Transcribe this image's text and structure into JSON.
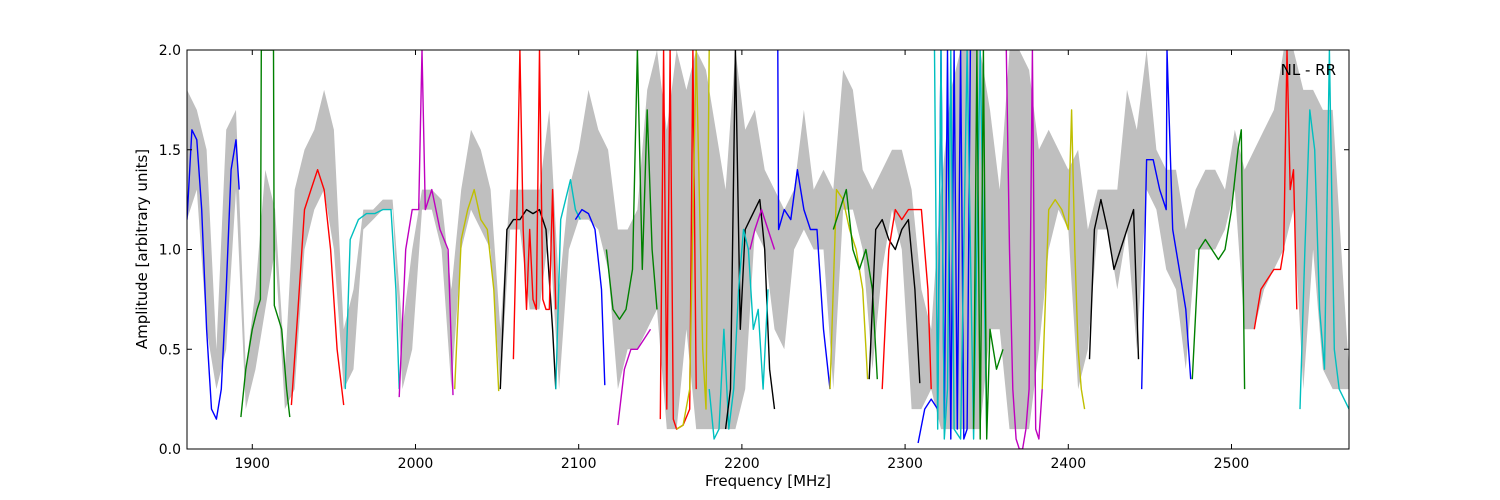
{
  "chart_data": {
    "type": "line",
    "title": "",
    "xlabel": "Frequency [MHz]",
    "ylabel": "Amplitude [arbitrary units]",
    "annotation": "NL - RR",
    "xlim": [
      1860,
      2572
    ],
    "ylim": [
      0.0,
      2.0
    ],
    "grid": false,
    "xticks": [
      {
        "value": 1900,
        "label": "1900"
      },
      {
        "value": 2000,
        "label": "2000"
      },
      {
        "value": 2100,
        "label": "2100"
      },
      {
        "value": 2200,
        "label": "2200"
      },
      {
        "value": 2300,
        "label": "2300"
      },
      {
        "value": 2400,
        "label": "2400"
      },
      {
        "value": 2500,
        "label": "2500"
      }
    ],
    "yticks": [
      {
        "value": 0.0,
        "label": "0.0"
      },
      {
        "value": 0.5,
        "label": "0.5"
      },
      {
        "value": 1.0,
        "label": "1.0"
      },
      {
        "value": 1.5,
        "label": "1.5"
      },
      {
        "value": 2.0,
        "label": "2.0"
      }
    ],
    "envelope": {
      "color": "#bfbfbf",
      "x": [
        1860,
        1866,
        1872,
        1878,
        1884,
        1890,
        1896,
        1902,
        1908,
        1914,
        1920,
        1926,
        1932,
        1938,
        1944,
        1950,
        1956,
        1962,
        1968,
        1974,
        1980,
        1986,
        1992,
        1998,
        2004,
        2010,
        2016,
        2022,
        2028,
        2034,
        2040,
        2046,
        2052,
        2058,
        2064,
        2070,
        2076,
        2082,
        2088,
        2094,
        2100,
        2106,
        2112,
        2118,
        2124,
        2130,
        2136,
        2142,
        2148,
        2154,
        2160,
        2166,
        2172,
        2178,
        2184,
        2190,
        2196,
        2202,
        2208,
        2214,
        2220,
        2226,
        2232,
        2238,
        2244,
        2250,
        2256,
        2262,
        2268,
        2274,
        2280,
        2286,
        2292,
        2298,
        2304,
        2310,
        2316,
        2322,
        2328,
        2334,
        2340,
        2346,
        2352,
        2358,
        2364,
        2370,
        2376,
        2382,
        2388,
        2394,
        2400,
        2406,
        2412,
        2418,
        2424,
        2430,
        2436,
        2442,
        2448,
        2454,
        2460,
        2466,
        2472,
        2478,
        2484,
        2490,
        2496,
        2502,
        2508,
        2514,
        2520,
        2526,
        2532,
        2538,
        2544,
        2550,
        2556,
        2562,
        2568,
        2572
      ],
      "lo": [
        1.15,
        1.3,
        0.6,
        0.3,
        0.5,
        1.3,
        0.2,
        0.4,
        0.7,
        1.0,
        0.2,
        0.3,
        1.0,
        1.2,
        1.3,
        1.0,
        0.3,
        0.4,
        1.1,
        1.15,
        1.2,
        1.2,
        0.3,
        0.5,
        1.2,
        1.2,
        1.0,
        0.3,
        1.0,
        1.2,
        1.1,
        1.0,
        0.3,
        1.1,
        1.1,
        0.7,
        0.7,
        1.1,
        0.3,
        1.0,
        1.15,
        1.15,
        1.1,
        0.9,
        0.3,
        0.5,
        0.5,
        0.6,
        0.7,
        0.1,
        0.1,
        0.6,
        0.1,
        0.1,
        0.1,
        0.1,
        0.1,
        0.3,
        1.1,
        1.0,
        0.6,
        0.5,
        1.0,
        1.1,
        1.0,
        1.0,
        0.3,
        1.2,
        1.2,
        1.0,
        0.4,
        0.9,
        1.2,
        1.0,
        0.2,
        0.2,
        0.3,
        0.1,
        0.1,
        0.1,
        0.1,
        0.1,
        0.6,
        0.6,
        0.1,
        0.1,
        0.1,
        0.5,
        1.0,
        1.2,
        1.1,
        0.3,
        0.5,
        1.1,
        1.1,
        0.8,
        1.1,
        0.5,
        1.3,
        1.2,
        0.9,
        0.8,
        0.4,
        1.0,
        1.0,
        1.0,
        1.1,
        1.3,
        0.6,
        0.6,
        0.8,
        0.9,
        1.0,
        1.2,
        0.3,
        1.0,
        0.4,
        0.3,
        0.3,
        0.3
      ],
      "hi": [
        1.8,
        1.7,
        1.5,
        0.5,
        1.6,
        1.7,
        0.4,
        0.8,
        1.4,
        1.2,
        0.4,
        1.3,
        1.5,
        1.6,
        1.8,
        1.6,
        0.6,
        0.8,
        1.2,
        1.2,
        1.25,
        1.25,
        0.6,
        1.0,
        1.3,
        1.3,
        1.25,
        0.8,
        1.3,
        1.6,
        1.5,
        1.3,
        0.6,
        1.3,
        1.3,
        1.3,
        1.3,
        1.7,
        0.8,
        1.3,
        1.5,
        1.8,
        1.6,
        1.5,
        1.1,
        1.1,
        1.2,
        1.8,
        2.0,
        1.6,
        2.0,
        1.8,
        2.0,
        1.9,
        1.6,
        1.3,
        2.0,
        1.6,
        1.7,
        1.4,
        1.3,
        1.2,
        1.3,
        1.7,
        1.3,
        1.4,
        1.3,
        1.9,
        1.8,
        1.4,
        1.3,
        1.4,
        1.5,
        1.5,
        1.3,
        0.8,
        0.6,
        1.3,
        1.8,
        2.0,
        2.0,
        2.0,
        1.7,
        1.3,
        2.0,
        2.0,
        1.9,
        1.5,
        1.6,
        1.5,
        1.4,
        1.5,
        1.1,
        1.3,
        1.3,
        1.3,
        1.8,
        1.6,
        2.0,
        1.5,
        1.4,
        1.4,
        1.1,
        1.3,
        1.4,
        1.4,
        1.3,
        1.6,
        1.4,
        1.5,
        1.6,
        1.7,
        2.0,
        2.0,
        1.8,
        1.8,
        1.7,
        1.7,
        0.9,
        0.4
      ]
    },
    "series": [
      {
        "color": "#0000ff",
        "x": [
          1860,
          1863,
          1866,
          1869,
          1872,
          1875,
          1878,
          1881,
          1884,
          1887,
          1890,
          1892
        ],
        "y": [
          1.15,
          1.6,
          1.55,
          1.2,
          0.6,
          0.2,
          0.15,
          0.3,
          0.8,
          1.4,
          1.55,
          1.3
        ]
      },
      {
        "color": "#008000",
        "x": [
          1893,
          1896,
          1900,
          1903,
          1905,
          1905.5,
          1913,
          1913.5,
          1918,
          1921,
          1923
        ],
        "y": [
          0.16,
          0.4,
          0.6,
          0.7,
          0.75,
          2.0,
          2.0,
          0.72,
          0.6,
          0.3,
          0.16
        ]
      },
      {
        "color": "#ff0000",
        "x": [
          1924,
          1928,
          1932,
          1936,
          1940,
          1944,
          1948,
          1952,
          1956
        ],
        "y": [
          0.22,
          0.7,
          1.2,
          1.3,
          1.4,
          1.3,
          1.0,
          0.5,
          0.22
        ]
      },
      {
        "color": "#00bfbf",
        "x": [
          1957,
          1960,
          1965,
          1970,
          1975,
          1980,
          1985,
          1988,
          1990
        ],
        "y": [
          0.3,
          1.05,
          1.15,
          1.18,
          1.18,
          1.2,
          1.2,
          0.8,
          0.3
        ]
      },
      {
        "color": "#bf00bf",
        "x": [
          1990,
          1994,
          1998,
          2002,
          2004,
          2006,
          2010,
          2015,
          2020,
          2023
        ],
        "y": [
          0.26,
          1.0,
          1.2,
          1.2,
          2.0,
          1.2,
          1.3,
          1.1,
          1.0,
          0.27
        ]
      },
      {
        "color": "#bfbf00",
        "x": [
          2024,
          2028,
          2032,
          2036,
          2040,
          2044,
          2048,
          2051
        ],
        "y": [
          0.3,
          1.05,
          1.2,
          1.3,
          1.15,
          1.1,
          0.8,
          0.29
        ]
      },
      {
        "color": "#000000",
        "x": [
          2052,
          2056,
          2060,
          2064,
          2068,
          2072,
          2076,
          2080,
          2084,
          2086
        ],
        "y": [
          0.3,
          1.1,
          1.15,
          1.15,
          1.2,
          1.18,
          1.2,
          1.1,
          0.6,
          0.3
        ]
      },
      {
        "color": "#ff0000",
        "x": [
          2060,
          2062,
          2064,
          2066,
          2068,
          2070,
          2072,
          2074,
          2076,
          2078,
          2080,
          2082,
          2084,
          2086
        ],
        "y": [
          0.45,
          1.15,
          2.0,
          1.1,
          0.7,
          1.1,
          0.75,
          0.7,
          2.0,
          0.75,
          0.7,
          0.7,
          1.3,
          0.7
        ]
      },
      {
        "color": "#00bfbf",
        "x": [
          2086,
          2089,
          2092,
          2095,
          2098,
          2101
        ],
        "y": [
          0.3,
          1.15,
          1.25,
          1.35,
          1.2,
          1.15
        ]
      },
      {
        "color": "#0000ff",
        "x": [
          2098,
          2102,
          2106,
          2110,
          2114,
          2116
        ],
        "y": [
          1.15,
          1.2,
          1.18,
          1.1,
          0.8,
          0.32
        ]
      },
      {
        "color": "#008000",
        "x": [
          2117,
          2121,
          2125,
          2129,
          2133,
          2136,
          2139,
          2142,
          2145,
          2148
        ],
        "y": [
          1.0,
          0.7,
          0.65,
          0.7,
          0.9,
          2.0,
          0.9,
          1.7,
          1.0,
          0.7
        ]
      },
      {
        "color": "#bf00bf",
        "x": [
          2124,
          2128,
          2132,
          2136,
          2140,
          2144
        ],
        "y": [
          0.12,
          0.4,
          0.5,
          0.5,
          0.55,
          0.6
        ]
      },
      {
        "color": "#ff0000",
        "x": [
          2150,
          2152,
          2154,
          2156,
          2158,
          2160,
          2164,
          2168,
          2170,
          2172
        ],
        "y": [
          0.15,
          2.0,
          0.2,
          2.0,
          0.15,
          0.1,
          0.12,
          0.2,
          2.0,
          0.3
        ]
      },
      {
        "color": "#bfbf00",
        "x": [
          2160,
          2164,
          2168,
          2172,
          2176,
          2178,
          2180
        ],
        "y": [
          0.1,
          0.12,
          0.3,
          2.0,
          0.5,
          0.2,
          2.0
        ]
      },
      {
        "color": "#00bfbf",
        "x": [
          2180,
          2183,
          2186,
          2189,
          2192,
          2195,
          2198
        ],
        "y": [
          0.3,
          0.05,
          0.1,
          0.6,
          0.1,
          0.3,
          0.8
        ]
      },
      {
        "color": "#000000",
        "x": [
          2190,
          2193,
          2196,
          2199,
          2202,
          2205,
          2208,
          2211,
          2214,
          2217,
          2220
        ],
        "y": [
          0.1,
          0.3,
          2.0,
          0.6,
          1.1,
          1.15,
          1.2,
          1.25,
          1.0,
          0.4,
          0.2
        ]
      },
      {
        "color": "#00bfbf",
        "x": [
          2198,
          2201,
          2204,
          2207,
          2210,
          2213,
          2216
        ],
        "y": [
          0.8,
          1.1,
          1.0,
          0.6,
          0.7,
          0.3,
          0.8
        ]
      },
      {
        "color": "#0000ff",
        "x": [
          2222,
          2222.5,
          2226,
          2230,
          2234,
          2238,
          2242,
          2246,
          2250,
          2254
        ],
        "y": [
          2.0,
          1.1,
          1.2,
          1.15,
          1.4,
          1.2,
          1.1,
          1.1,
          0.6,
          0.3
        ]
      },
      {
        "color": "#bf00bf",
        "x": [
          2205,
          2208,
          2212,
          2216,
          2220
        ],
        "y": [
          1.0,
          1.1,
          1.2,
          1.1,
          1.0
        ]
      },
      {
        "color": "#bfbf00",
        "x": [
          2254,
          2258,
          2262,
          2266,
          2270,
          2274,
          2277
        ],
        "y": [
          0.3,
          1.3,
          1.25,
          1.1,
          1.0,
          0.8,
          0.35
        ]
      },
      {
        "color": "#008000",
        "x": [
          2256,
          2260,
          2264,
          2268,
          2272,
          2276,
          2280,
          2283
        ],
        "y": [
          1.1,
          1.2,
          1.3,
          1.0,
          0.9,
          1.0,
          0.8,
          0.35
        ]
      },
      {
        "color": "#000000",
        "x": [
          2278,
          2282,
          2286,
          2290,
          2294,
          2298,
          2302,
          2306,
          2309
        ],
        "y": [
          0.35,
          1.1,
          1.15,
          1.05,
          1.0,
          1.1,
          1.15,
          0.8,
          0.33
        ]
      },
      {
        "color": "#ff0000",
        "x": [
          2286,
          2290,
          2294,
          2298,
          2302,
          2306,
          2310,
          2314,
          2316
        ],
        "y": [
          0.3,
          1.0,
          1.2,
          1.15,
          1.2,
          1.2,
          1.2,
          0.8,
          0.3
        ]
      },
      {
        "color": "#0000ff",
        "x": [
          2308,
          2312,
          2316,
          2320,
          2322,
          2324,
          2326,
          2328,
          2330,
          2332,
          2334,
          2336,
          2338,
          2340
        ],
        "y": [
          0.03,
          0.2,
          0.25,
          0.2,
          2.0,
          0.1,
          2.0,
          0.05,
          2.0,
          0.1,
          2.0,
          0.05,
          0.1,
          2.0
        ]
      },
      {
        "color": "#00bfbf",
        "x": [
          2318,
          2320,
          2322,
          2324,
          2326,
          2328,
          2330,
          2334,
          2338,
          2342,
          2346,
          2350
        ],
        "y": [
          2.0,
          0.1,
          2.0,
          0.05,
          0.3,
          2.0,
          0.1,
          0.05,
          2.0,
          0.05,
          2.0,
          0.1
        ]
      },
      {
        "color": "#008000",
        "x": [
          2342,
          2344,
          2346,
          2348,
          2350,
          2352,
          2356,
          2360
        ],
        "y": [
          0.1,
          2.0,
          0.05,
          2.0,
          0.05,
          0.6,
          0.4,
          0.5
        ]
      },
      {
        "color": "#bf00bf",
        "x": [
          2362,
          2364,
          2366,
          2368,
          2370,
          2372,
          2374,
          2376,
          2378,
          2380,
          2382,
          2384
        ],
        "y": [
          2.0,
          1.0,
          0.3,
          0.05,
          0.0,
          0.0,
          0.1,
          0.3,
          2.0,
          0.1,
          0.05,
          0.3
        ]
      },
      {
        "color": "#bfbf00",
        "x": [
          2384,
          2388,
          2392,
          2396,
          2400,
          2402,
          2404,
          2406,
          2408,
          2410
        ],
        "y": [
          0.3,
          1.2,
          1.25,
          1.2,
          1.1,
          1.7,
          1.0,
          0.5,
          0.3,
          0.2
        ]
      },
      {
        "color": "#000000",
        "x": [
          2413,
          2416,
          2420,
          2424,
          2428,
          2432,
          2436,
          2440,
          2443
        ],
        "y": [
          0.45,
          1.1,
          1.25,
          1.1,
          0.9,
          1.0,
          1.1,
          1.2,
          0.45
        ]
      },
      {
        "color": "#0000ff",
        "x": [
          2445,
          2448,
          2452,
          2456,
          2460,
          2460.5,
          2464,
          2468,
          2472,
          2475
        ],
        "y": [
          0.3,
          1.45,
          1.45,
          1.3,
          1.2,
          2.0,
          1.1,
          0.9,
          0.7,
          0.35
        ]
      },
      {
        "color": "#008000",
        "x": [
          2476,
          2480,
          2484,
          2488,
          2492,
          2496,
          2500,
          2504,
          2506,
          2508
        ],
        "y": [
          0.35,
          1.0,
          1.05,
          1.0,
          0.95,
          1.0,
          1.2,
          1.5,
          1.6,
          0.3
        ]
      },
      {
        "color": "#ff0000",
        "x": [
          2514,
          2518,
          2522,
          2526,
          2530,
          2532,
          2534,
          2536,
          2538,
          2540
        ],
        "y": [
          0.6,
          0.8,
          0.85,
          0.9,
          0.9,
          1.0,
          2.0,
          1.3,
          1.4,
          0.7
        ]
      },
      {
        "color": "#00bfbf",
        "x": [
          2542,
          2545,
          2548,
          2551,
          2554,
          2557,
          2560,
          2563,
          2566,
          2569,
          2572
        ],
        "y": [
          0.2,
          1.0,
          1.7,
          1.5,
          0.7,
          0.4,
          2.0,
          0.5,
          0.3,
          0.25,
          0.2
        ]
      }
    ]
  }
}
